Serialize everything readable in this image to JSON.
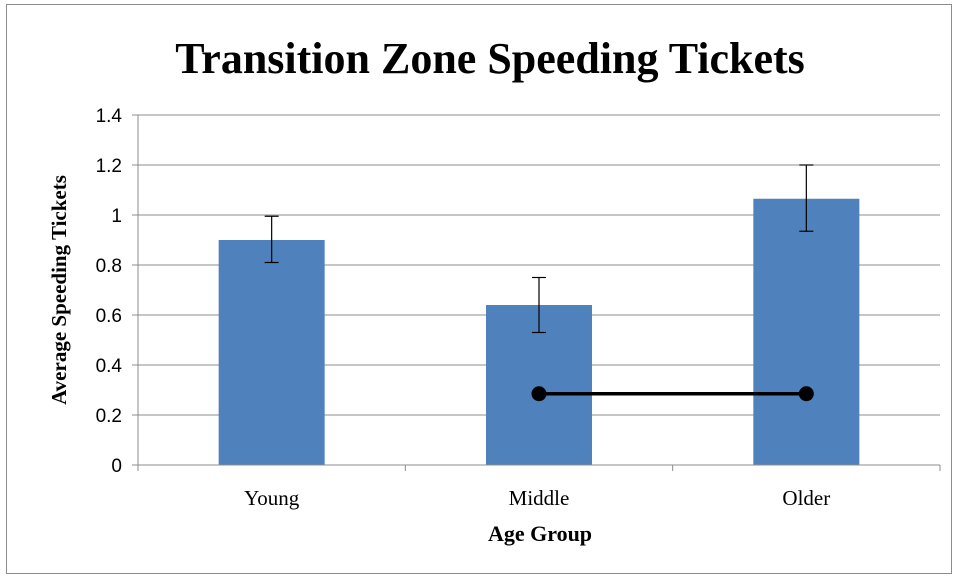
{
  "chart_data": {
    "type": "bar",
    "title": "Transition Zone Speeding Tickets",
    "xlabel": "Age Group",
    "ylabel": "Average Speeding Tickets",
    "categories": [
      "Young",
      "Middle",
      "Older"
    ],
    "values": [
      0.9,
      0.64,
      1.065
    ],
    "error_bars": [
      {
        "low": 0.81,
        "high": 0.995
      },
      {
        "low": 0.53,
        "high": 0.75
      },
      {
        "low": 0.935,
        "high": 1.2
      }
    ],
    "ylim": [
      0,
      1.4
    ],
    "yticks": [
      "0",
      "0.2",
      "0.4",
      "0.6",
      "0.8",
      "1",
      "1.2",
      "1.4"
    ],
    "grid": true,
    "legend": "none",
    "significance_bracket": {
      "from": "Middle",
      "to": "Older",
      "y": 0.285
    },
    "bar_color": "#4f81bd"
  }
}
